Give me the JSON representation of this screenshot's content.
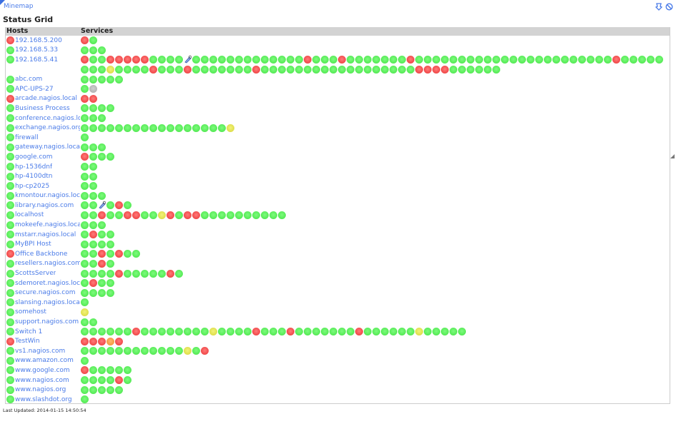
{
  "page": {
    "title_link": "Minemap",
    "heading": "Status Grid",
    "icons": [
      "pin-icon",
      "disable-icon"
    ],
    "last_updated_label": "Last Updated:",
    "last_updated_value": "2014-01-15 14:50:54"
  },
  "grid": {
    "columns": [
      "Hosts",
      "Services"
    ],
    "legend_codes": {
      "g": "ok",
      "r": "critical",
      "y": "warning",
      "o": "unknown",
      "u": "pending",
      "a": "acknowledged"
    },
    "colors": {
      "ok": "#55ea55",
      "critical": "#f04848",
      "warning": "#dede4a",
      "unknown": "#f59a40",
      "pending": "#b4b4b4",
      "link": "#4a7be8",
      "header_bg": "#d3d3d3"
    },
    "hosts": [
      {
        "name": "192.168.5.200",
        "status": "r",
        "services": "rg"
      },
      {
        "name": "192.168.5.33",
        "status": "g",
        "services": "ggg"
      },
      {
        "name": "192.168.5.41",
        "status": "g",
        "services": "rggrrrrrggggagggggggggggggrgggrgggggggrgggggggggggggggggggggggrggggggggyggggrgggrgggggggrggggggggggggggggggrrrrgggggg"
      },
      {
        "name": "abc.com",
        "status": "g",
        "services": "ggggg"
      },
      {
        "name": "APC-UPS-27",
        "status": "g",
        "services": "gu"
      },
      {
        "name": "arcade.nagios.local",
        "status": "r",
        "services": "rr"
      },
      {
        "name": "Business Process",
        "status": "g",
        "services": "gggg"
      },
      {
        "name": "conference.nagios.local",
        "status": "g",
        "services": "ggg"
      },
      {
        "name": "exchange.nagios.org",
        "status": "g",
        "services": "gggggggggggggggggy"
      },
      {
        "name": "firewall",
        "status": "g",
        "services": "g"
      },
      {
        "name": "gateway.nagios.local",
        "status": "g",
        "services": "ggg"
      },
      {
        "name": "google.com",
        "status": "g",
        "services": "rggg"
      },
      {
        "name": "hp-1536dnf",
        "status": "g",
        "services": "gg"
      },
      {
        "name": "hp-4100dtn",
        "status": "g",
        "services": "gg"
      },
      {
        "name": "hp-cp2025",
        "status": "g",
        "services": "gg"
      },
      {
        "name": "kmontour.nagios.local",
        "status": "g",
        "services": "ggg"
      },
      {
        "name": "library.nagios.com",
        "status": "g",
        "services": "ggagrg"
      },
      {
        "name": "localhost",
        "status": "g",
        "services": "ggrggrrggyrgrrgggggggggg"
      },
      {
        "name": "mokeefe.nagios.local",
        "status": "g",
        "services": "ggg"
      },
      {
        "name": "mstarr.nagios.local",
        "status": "g",
        "services": "grgg"
      },
      {
        "name": "MyBPI Host",
        "status": "g",
        "services": "gggg"
      },
      {
        "name": "Office Backbone",
        "status": "r",
        "services": "ggrgrgg"
      },
      {
        "name": "resellers.nagios.com",
        "status": "g",
        "services": "ggrg"
      },
      {
        "name": "ScottsServer",
        "status": "g",
        "services": "ggggrgggggrg"
      },
      {
        "name": "sdemoret.nagios.local",
        "status": "g",
        "services": "grgg"
      },
      {
        "name": "secure.nagios.com",
        "status": "g",
        "services": "gggg"
      },
      {
        "name": "slansing.nagios.local",
        "status": "g",
        "services": "g"
      },
      {
        "name": "somehost",
        "status": "g",
        "services": "y"
      },
      {
        "name": "support.nagios.com",
        "status": "g",
        "services": "gg"
      },
      {
        "name": "Switch 1",
        "status": "g",
        "services": "ggggggrggggggggyggggrgggrgggggggrggggggyggggg"
      },
      {
        "name": "TestWin",
        "status": "r",
        "services": "rrror"
      },
      {
        "name": "vs1.nagios.com",
        "status": "g",
        "services": "ggggggggggggygr"
      },
      {
        "name": "www.amazon.com",
        "status": "g",
        "services": "g"
      },
      {
        "name": "www.google.com",
        "status": "g",
        "services": "rggggg"
      },
      {
        "name": "www.nagios.com",
        "status": "g",
        "services": "ggggrg"
      },
      {
        "name": "www.nagios.org",
        "status": "g",
        "services": "ggggg"
      },
      {
        "name": "www.slashdot.org",
        "status": "g",
        "services": "g"
      }
    ]
  }
}
